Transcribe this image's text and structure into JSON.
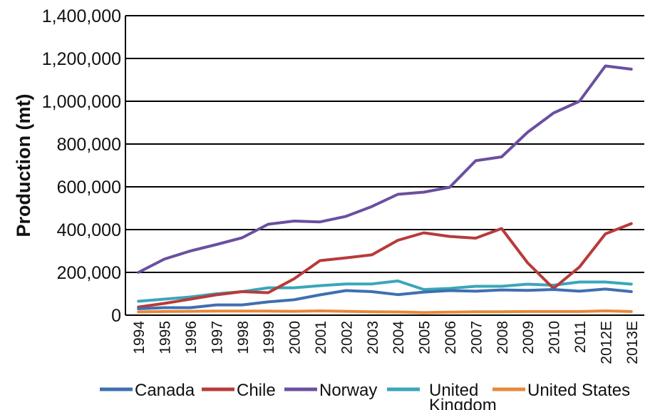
{
  "chart_data": {
    "type": "line",
    "title": "",
    "xlabel": "",
    "ylabel": "Production (mt)",
    "ylim": [
      0,
      1400000
    ],
    "yticks": [
      0,
      200000,
      400000,
      600000,
      800000,
      1000000,
      1200000,
      1400000
    ],
    "ytick_labels": [
      "0",
      "200,000",
      "400,000",
      "600,000",
      "800,000",
      "1,000,000",
      "1,200,000",
      "1,400,000"
    ],
    "grid": true,
    "legend_position": "bottom",
    "categories": [
      "1994",
      "1995",
      "1996",
      "1997",
      "1998",
      "1999",
      "2000",
      "2001",
      "2002",
      "2003",
      "2004",
      "2005",
      "2006",
      "2007",
      "2008",
      "2009",
      "2010",
      "2011",
      "2012E",
      "2013E"
    ],
    "series": [
      {
        "name": "Canada",
        "color": "#3f6fb0",
        "values": [
          30000,
          35000,
          35000,
          48000,
          48000,
          62000,
          72000,
          95000,
          115000,
          110000,
          96000,
          108000,
          115000,
          112000,
          118000,
          116000,
          120000,
          112000,
          122000,
          110000
        ]
      },
      {
        "name": "Chile",
        "color": "#b83a3a",
        "values": [
          38000,
          55000,
          75000,
          95000,
          110000,
          105000,
          170000,
          255000,
          268000,
          282000,
          350000,
          385000,
          368000,
          360000,
          405000,
          245000,
          125000,
          225000,
          380000,
          428000
        ]
      },
      {
        "name": "Norway",
        "color": "#6b4fa0",
        "values": [
          200000,
          262000,
          300000,
          330000,
          362000,
          425000,
          440000,
          436000,
          462000,
          508000,
          565000,
          575000,
          598000,
          722000,
          740000,
          855000,
          945000,
          1000000,
          1165000,
          1150000
        ]
      },
      {
        "name": "United Kingdom",
        "color": "#3aa6b9",
        "values": [
          65000,
          75000,
          85000,
          100000,
          110000,
          128000,
          128000,
          138000,
          146000,
          146000,
          160000,
          120000,
          125000,
          135000,
          135000,
          145000,
          140000,
          155000,
          155000,
          145000
        ]
      },
      {
        "name": "United States",
        "color": "#e8883a",
        "values": [
          15000,
          17000,
          18000,
          19000,
          19000,
          19000,
          18000,
          20000,
          18000,
          16000,
          15000,
          12000,
          14000,
          16000,
          16000,
          17000,
          17000,
          17000,
          20000,
          17000
        ]
      }
    ]
  }
}
